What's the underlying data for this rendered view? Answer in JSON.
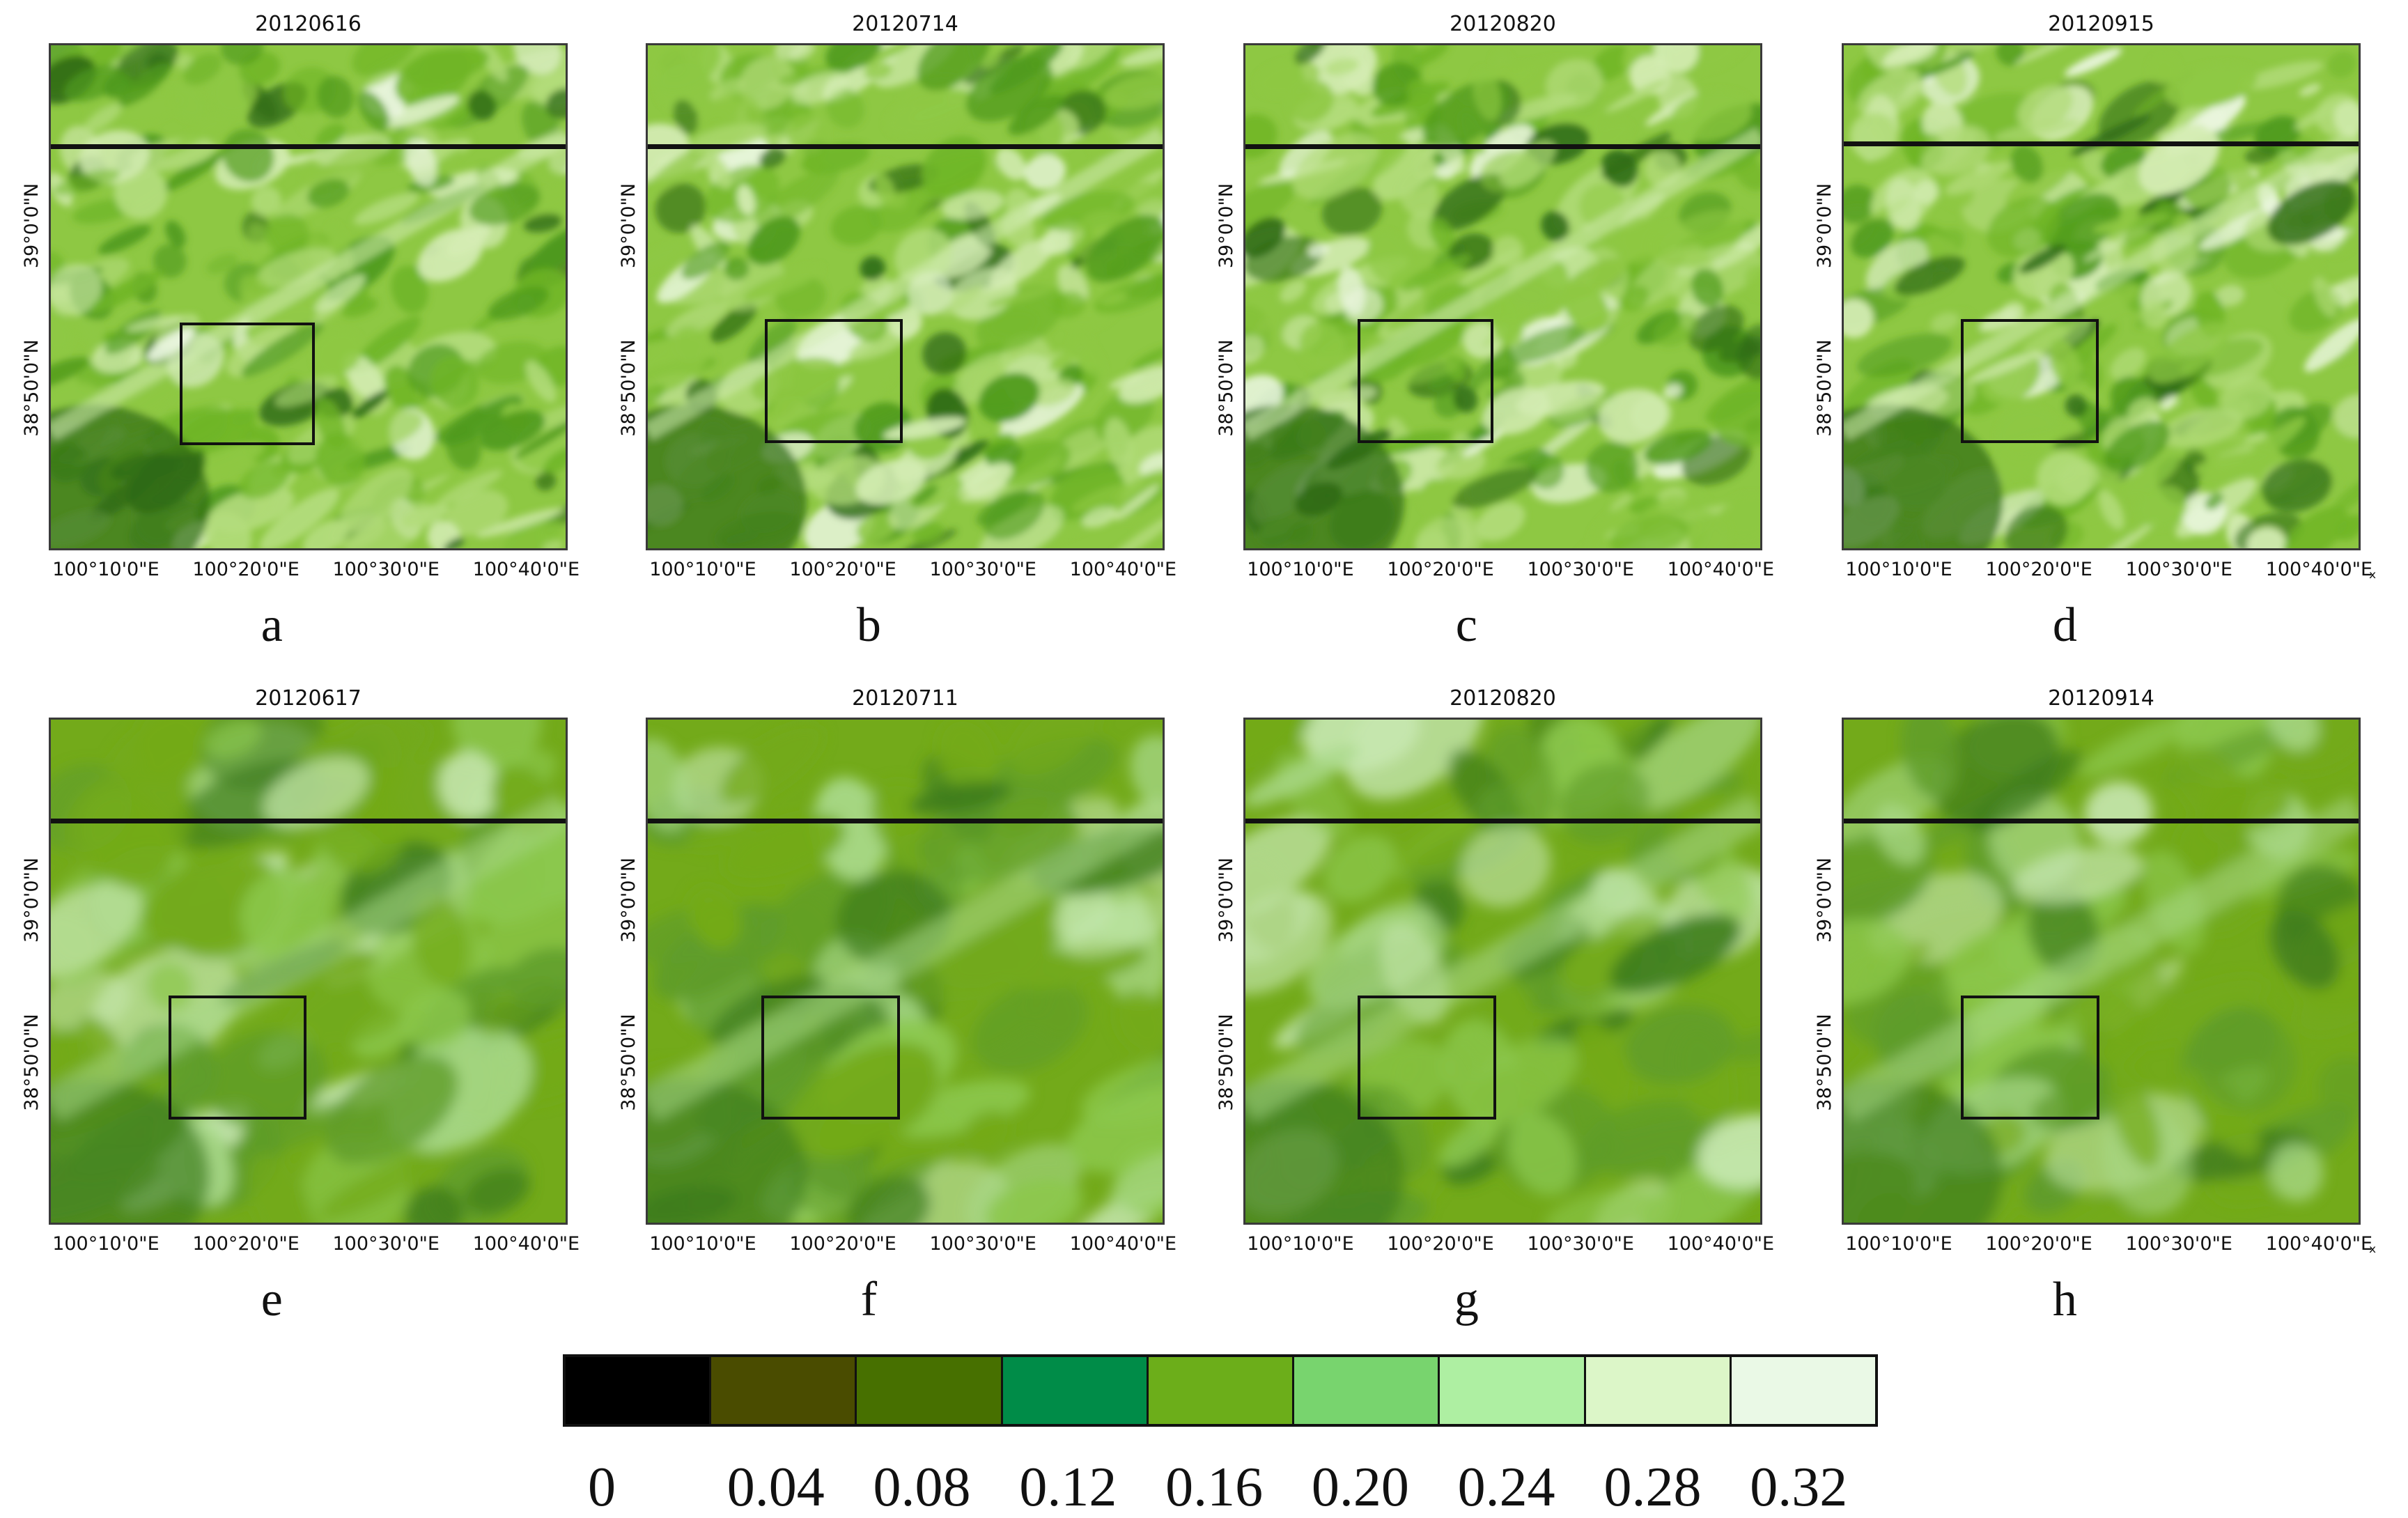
{
  "figure": {
    "panels": [
      {
        "date": "20120616",
        "letter": "a"
      },
      {
        "date": "20120714",
        "letter": "b"
      },
      {
        "date": "20120820",
        "letter": "c"
      },
      {
        "date": "20120915",
        "letter": "d"
      },
      {
        "date": "20120617",
        "letter": "e"
      },
      {
        "date": "20120711",
        "letter": "f"
      },
      {
        "date": "20120820",
        "letter": "g"
      },
      {
        "date": "20120914",
        "letter": "h"
      }
    ],
    "lat_ticks": [
      "39°0'0\"N",
      "38°50'0\"N"
    ],
    "lon_ticks": [
      "100°10'0\"E",
      "100°20'0\"E",
      "100°30'0\"E",
      "100°40'0\"E"
    ],
    "extra_mark": "ₓ"
  },
  "legend": {
    "labels": [
      "0",
      "0.04",
      "0.08",
      "0.12",
      "0.16",
      "0.20",
      "0.24",
      "0.28",
      "0.32"
    ],
    "colors": [
      "#000000",
      "#4a4c00",
      "#477000",
      "#008c48",
      "#6cae1a",
      "#78d46e",
      "#aeefa2",
      "#dcf6c8",
      "#eaf9e6"
    ]
  },
  "colors": {
    "high_res_palette": [
      "#2f6b16",
      "#4f9a1c",
      "#6fb526",
      "#8ec843",
      "#b3dc7c",
      "#d4ecb4",
      "#ecf7e2"
    ],
    "low_res_palette": [
      "#3f7d1e",
      "#5f9c2a",
      "#73aa1a",
      "#8cc84d",
      "#a9d98a",
      "#c6e7b0"
    ]
  }
}
